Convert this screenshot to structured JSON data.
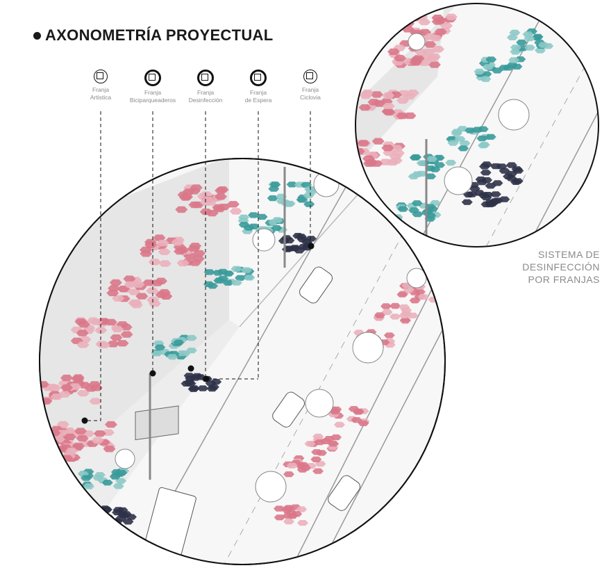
{
  "title": "AXONOMETRÍA PROYECTUAL",
  "legend": [
    {
      "line1": "Franja",
      "line2": "Artistica",
      "icon": "circle-square-thin-icon"
    },
    {
      "line1": "Franja",
      "line2": "Biciparqueaderos",
      "icon": "circle-square-bold-icon"
    },
    {
      "line1": "Franja",
      "line2": "Desinfección",
      "icon": "circle-square-bold-icon"
    },
    {
      "line1": "Franja",
      "line2": "de Espera",
      "icon": "circle-square-bold-icon"
    },
    {
      "line1": "Franja",
      "line2": "Ciclovia",
      "icon": "circle-square-thin-icon"
    }
  ],
  "system_label": [
    "SISTEMA DE",
    "DESINFECCIÓN",
    "POR FRANJAS"
  ],
  "colors": {
    "pink": "#d9788a",
    "light_pink": "#eab0bb",
    "teal": "#3a9a9a",
    "light_teal": "#8cc9c6",
    "navy": "#2f3248",
    "line": "#111111"
  }
}
